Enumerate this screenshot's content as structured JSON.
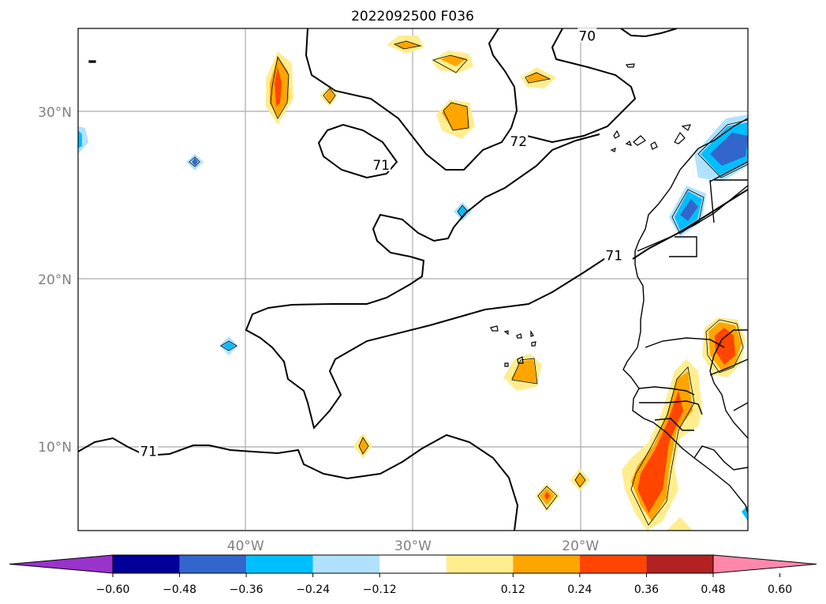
{
  "title": "2022092500 F036",
  "map": {
    "lon_range": [
      -50,
      -10
    ],
    "lat_range": [
      5,
      35
    ],
    "lat_labels": [
      {
        "lat": 30,
        "text": "30°N"
      },
      {
        "lat": 20,
        "text": "20°N"
      },
      {
        "lat": 10,
        "text": "10°N"
      }
    ],
    "lon_labels": [
      {
        "lon": -40,
        "text": "40°W"
      },
      {
        "lon": -30,
        "text": "30°W"
      },
      {
        "lon": -20,
        "text": "20°W"
      }
    ],
    "grid": true,
    "contour_labels": [
      {
        "text": "70",
        "lon": -19.6,
        "lat": 34.5
      },
      {
        "text": "72",
        "lon": -23.7,
        "lat": 28.2
      },
      {
        "text": "71",
        "lon": -31.9,
        "lat": 26.8
      },
      {
        "text": "71",
        "lon": -18.0,
        "lat": 21.4
      },
      {
        "text": "71",
        "lon": -45.8,
        "lat": 9.7
      }
    ]
  },
  "colorbar": {
    "ticks": [
      "−0.60",
      "−0.48",
      "−0.36",
      "−0.24",
      "−0.12",
      "0.12",
      "0.24",
      "0.36",
      "0.48",
      "0.60"
    ],
    "colors": [
      "#9933cc",
      "#000099",
      "#3366cc",
      "#00bfff",
      "#b0e2ff",
      "#ffffff",
      "#ffed8f",
      "#ffa500",
      "#ff4500",
      "#b22222",
      "#ff88aa"
    ],
    "extend": "both"
  }
}
